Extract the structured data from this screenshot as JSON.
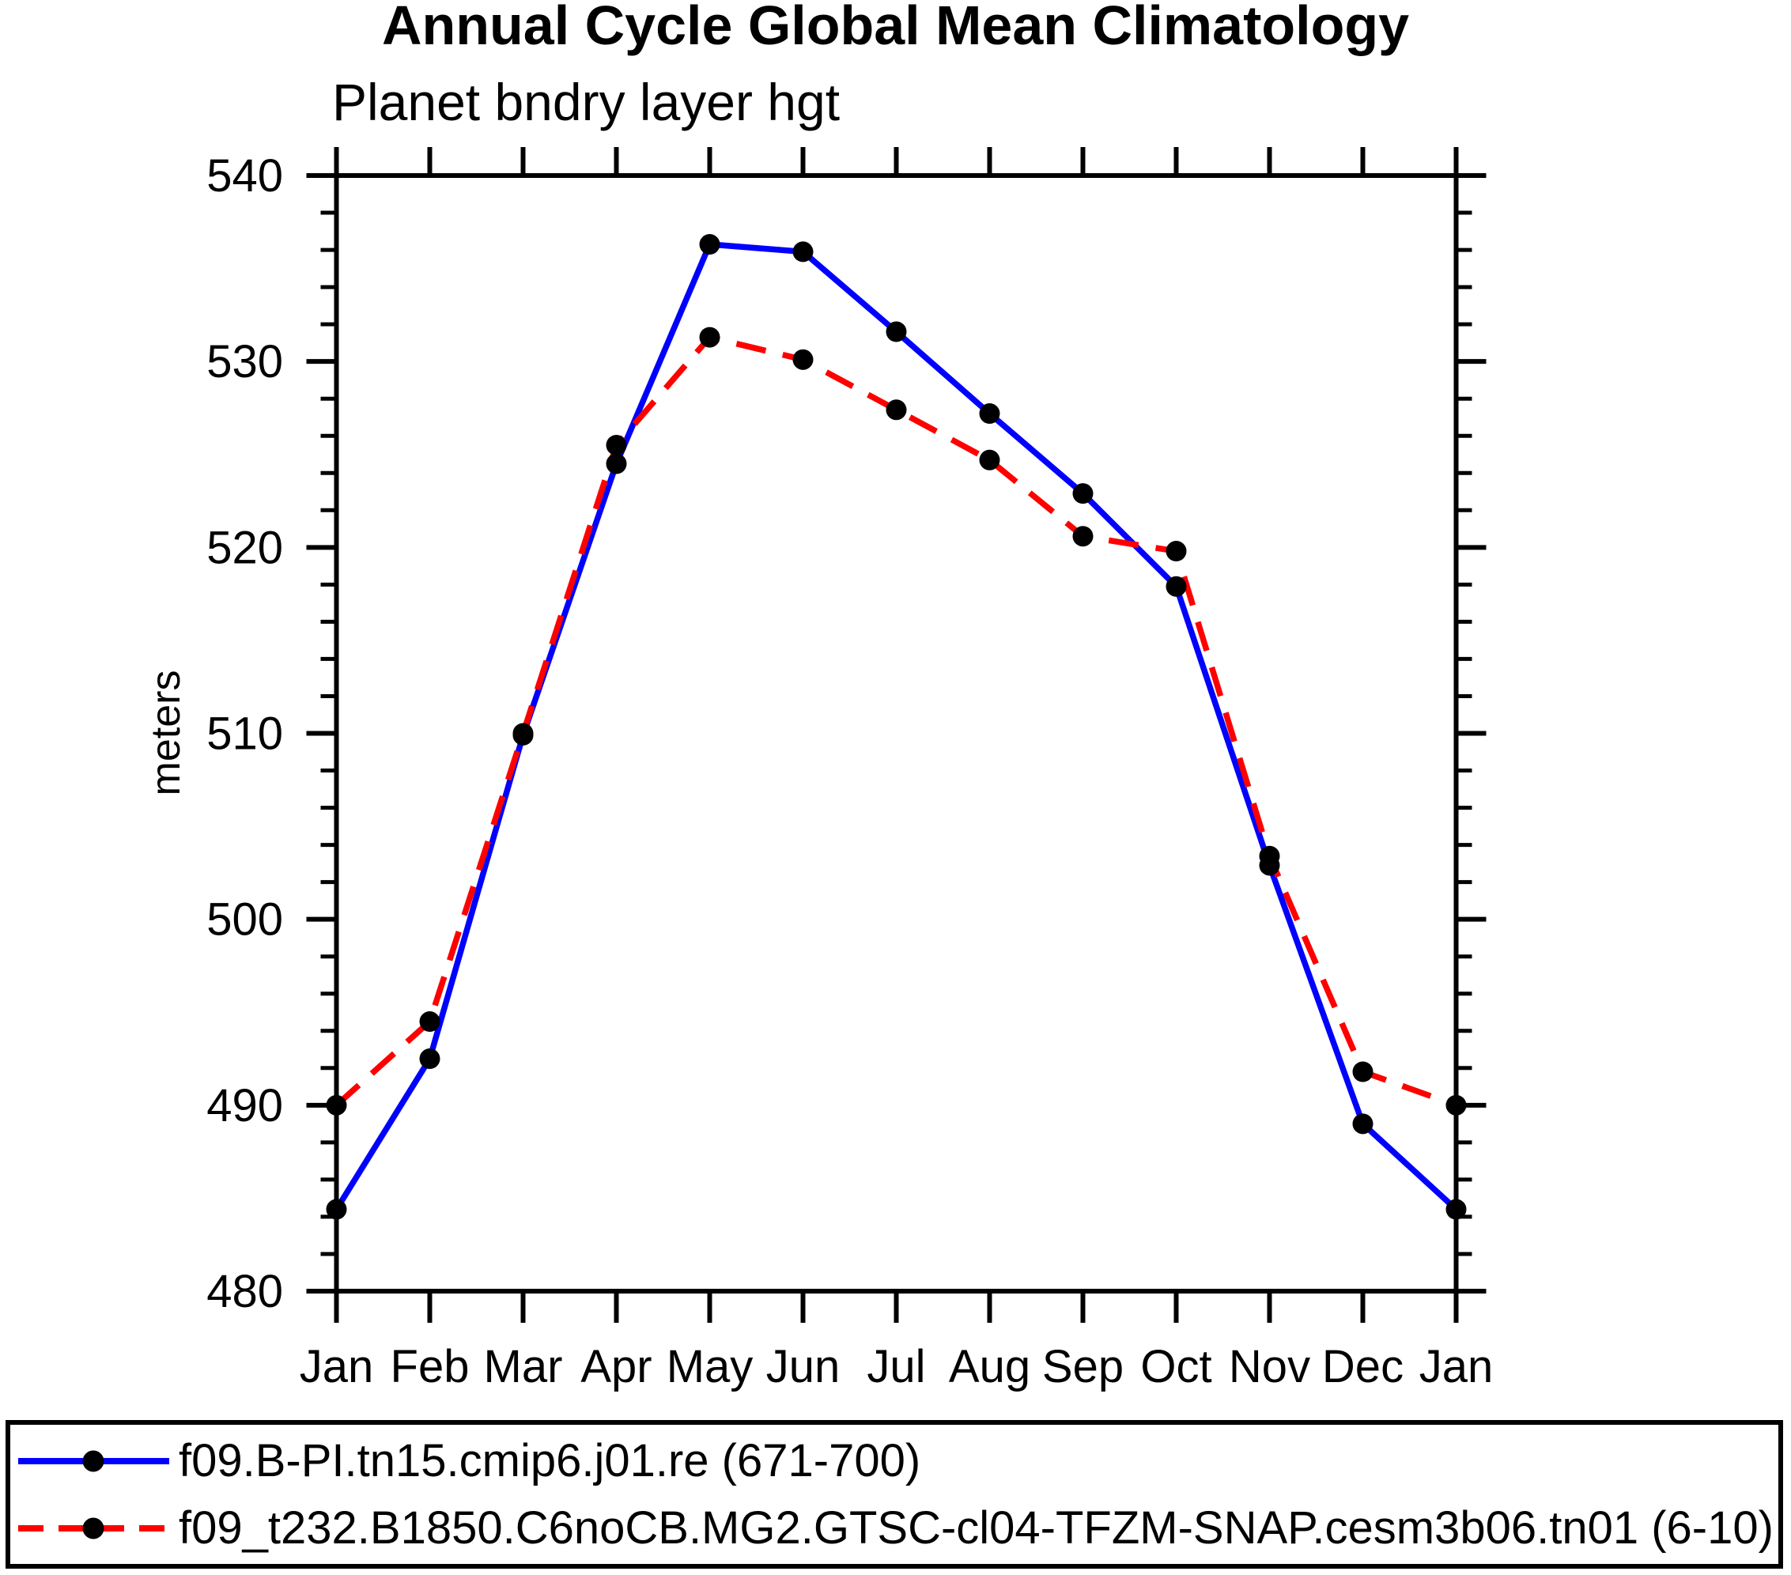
{
  "title": "Annual Cycle Global Mean Climatology",
  "subtitle": "Planet bndry layer hgt",
  "y_axis_title": "meters",
  "colors": {
    "series1": "#0000ff",
    "series2": "#ff0000",
    "marker": "#000000",
    "axis": "#000000",
    "background": "#ffffff"
  },
  "legend": {
    "items": [
      {
        "label": "f09.B-PI.tn15.cmip6.j01.re (671-700)",
        "color": "#0000ff",
        "line_style": "solid",
        "marker": "filled-circle"
      },
      {
        "label": "f09_t232.B1850.C6noCB.MG2.GTSC-cl04-TFZM-SNAP.cesm3b06.tn01 (6-10)",
        "color": "#ff0000",
        "line_style": "dashed",
        "marker": "filled-circle"
      }
    ],
    "marker_color": "#000000"
  },
  "chart_data": {
    "type": "line",
    "title": "Annual Cycle Global Mean Climatology",
    "subtitle": "Planet bndry layer hgt",
    "xlabel": "",
    "ylabel": "meters",
    "x": [
      "Jan",
      "Feb",
      "Mar",
      "Apr",
      "May",
      "Jun",
      "Jul",
      "Aug",
      "Sep",
      "Oct",
      "Nov",
      "Dec",
      "Jan"
    ],
    "series": [
      {
        "name": "f09.B-PI.tn15.cmip6.j01.re (671-700)",
        "color": "#0000ff",
        "line_style": "solid",
        "marker": "filled-circle",
        "values": [
          484.4,
          492.5,
          509.9,
          524.5,
          536.3,
          535.9,
          531.6,
          527.2,
          522.9,
          517.9,
          502.9,
          489.0,
          484.4
        ]
      },
      {
        "name": "f09_t232.B1850.C6noCB.MG2.GTSC-cl04-TFZM-SNAP.cesm3b06.tn01 (6-10)",
        "color": "#ff0000",
        "line_style": "dashed",
        "marker": "filled-circle",
        "values": [
          490.0,
          494.5,
          510.0,
          525.5,
          531.3,
          530.1,
          527.4,
          524.7,
          520.6,
          519.8,
          503.4,
          491.8,
          490.0
        ]
      }
    ],
    "ylim": [
      480,
      540
    ],
    "ytick_step": 10,
    "yminor_step": 2,
    "yticks": [
      480,
      490,
      500,
      510,
      520,
      530,
      540
    ],
    "grid": false,
    "legend_position": "bottom",
    "tick_direction": "out"
  }
}
